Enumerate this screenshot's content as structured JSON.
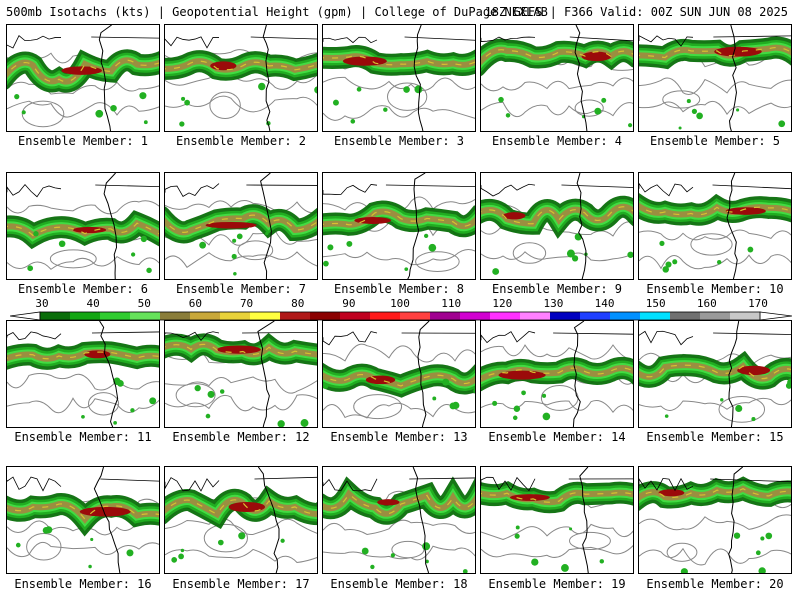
{
  "header": {
    "left": "500mb Isotachs (kts) | Geopotential Height (gpm) | College of DuPage NEXLAB",
    "right": "18Z GEFS | F366 Valid: 00Z SUN JUN 08 2025"
  },
  "panels": [
    {
      "caption": "Ensemble Member: 1"
    },
    {
      "caption": "Ensemble Member: 2"
    },
    {
      "caption": "Ensemble Member: 3"
    },
    {
      "caption": "Ensemble Member: 4"
    },
    {
      "caption": "Ensemble Member: 5"
    },
    {
      "caption": "Ensemble Member: 6"
    },
    {
      "caption": "Ensemble Member: 7"
    },
    {
      "caption": "Ensemble Member: 8"
    },
    {
      "caption": "Ensemble Member: 9"
    },
    {
      "caption": "Ensemble Member: 10"
    },
    {
      "caption": "Ensemble Member: 11"
    },
    {
      "caption": "Ensemble Member: 12"
    },
    {
      "caption": "Ensemble Member: 13"
    },
    {
      "caption": "Ensemble Member: 14"
    },
    {
      "caption": "Ensemble Member: 15"
    },
    {
      "caption": "Ensemble Member: 16"
    },
    {
      "caption": "Ensemble Member: 17"
    },
    {
      "caption": "Ensemble Member: 18"
    },
    {
      "caption": "Ensemble Member: 19"
    },
    {
      "caption": "Ensemble Member: 20"
    }
  ],
  "colorbar": {
    "labels": [
      "30",
      "40",
      "50",
      "60",
      "70",
      "80",
      "90",
      "100",
      "110",
      "120",
      "130",
      "140",
      "150",
      "160",
      "170"
    ],
    "colors": [
      "#0a6e0a",
      "#13a613",
      "#30cc30",
      "#66e25a",
      "#8a7d3a",
      "#c8a83a",
      "#e8d23a",
      "#ffff40",
      "#b01818",
      "#8b0000",
      "#c00020",
      "#ff1a1a",
      "#ff4040",
      "#a00090",
      "#d000d0",
      "#ff30ff",
      "#ff80ff",
      "#0000c0",
      "#2040ff",
      "#0090ff",
      "#00e0ff",
      "#707070",
      "#9a9a9a",
      "#c8c8c8"
    ]
  },
  "colors": {
    "jet_dark": "#0a6e0a",
    "jet_mid": "#22b022",
    "jet_light": "#44dd44",
    "jet_tan": "#a08a40",
    "jet_yellow": "#d8c030",
    "jet_core": "#9b0a0a",
    "height_contour": "#888888",
    "coastline": "#000000"
  }
}
